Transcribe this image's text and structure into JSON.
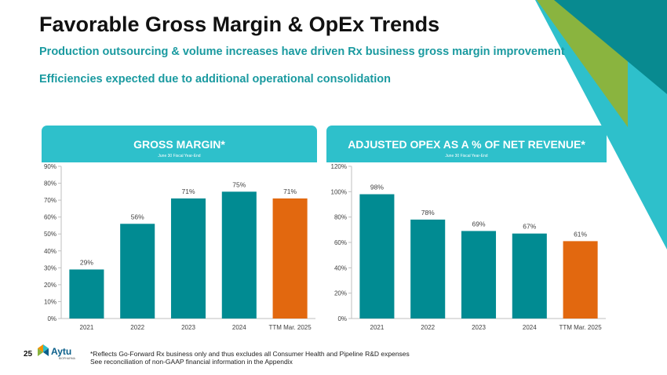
{
  "slide": {
    "title": "Favorable Gross Margin & OpEx Trends",
    "subtitle_1": "Production outsourcing & volume increases have driven Rx business gross margin improvement",
    "subtitle_2": "Efficiencies expected due to additional operational consolidation",
    "page_number": "25",
    "footnote_1": "*Reflects Go-Forward Rx business only and thus excludes all Consumer Health and Pipeline R&D expenses",
    "footnote_2": "See reconciliation of non-GAAP financial information in the Appendix",
    "logo_text": "Aytu",
    "logo_subtext": "BIOPHARMA"
  },
  "colors": {
    "teal_bar": "#018b92",
    "highlight_bar": "#e2680f",
    "header_bg": "#2ec0cb",
    "subtitle": "#1a9aa0"
  },
  "chart_data": [
    {
      "type": "bar",
      "title": "GROSS MARGIN*",
      "subtitle": "June 30 Fiscal Year-End",
      "categories": [
        "2021",
        "2022",
        "2023",
        "2024",
        "TTM Mar. 2025"
      ],
      "values": [
        29,
        56,
        71,
        75,
        71
      ],
      "value_labels": [
        "29%",
        "56%",
        "71%",
        "75%",
        "71%"
      ],
      "highlight_index": 4,
      "ylim": [
        0,
        90
      ],
      "yticks": [
        0,
        10,
        20,
        30,
        40,
        50,
        60,
        70,
        80,
        90
      ],
      "ytick_labels": [
        "0%",
        "10%",
        "20%",
        "30%",
        "40%",
        "50%",
        "60%",
        "70%",
        "80%",
        "90%"
      ],
      "xlabel": "",
      "ylabel": "",
      "grid": false
    },
    {
      "type": "bar",
      "title": "ADJUSTED OPEX AS A % OF NET REVENUE*",
      "subtitle": "June 30 Fiscal Year-End",
      "categories": [
        "2021",
        "2022",
        "2023",
        "2024",
        "TTM Mar. 2025"
      ],
      "values": [
        98,
        78,
        69,
        67,
        61
      ],
      "value_labels": [
        "98%",
        "78%",
        "69%",
        "67%",
        "61%"
      ],
      "highlight_index": 4,
      "ylim": [
        0,
        120
      ],
      "yticks": [
        0,
        20,
        40,
        60,
        80,
        100,
        120
      ],
      "ytick_labels": [
        "0%",
        "20%",
        "40%",
        "60%",
        "80%",
        "100%",
        "120%"
      ],
      "xlabel": "",
      "ylabel": "",
      "grid": false
    }
  ]
}
